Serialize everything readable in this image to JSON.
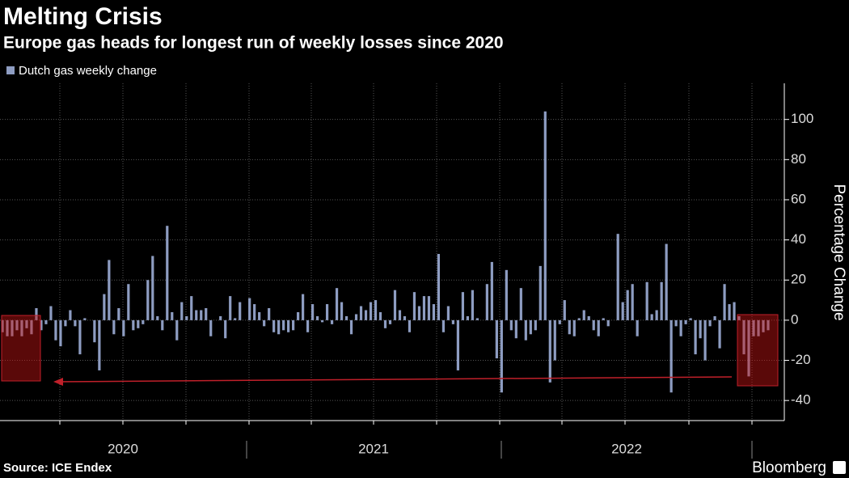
{
  "chart_data": {
    "type": "bar",
    "title": "Melting Crisis",
    "subtitle": "Europe gas heads for longest run of weekly losses since 2020",
    "y_label": "Percentage Change",
    "x_labels": [
      "2020",
      "2021",
      "2022"
    ],
    "source": "Source: ICE Endex",
    "brand": "Bloomberg",
    "categories": [
      null,
      null,
      null,
      null,
      null,
      null,
      null,
      null,
      null,
      null,
      null,
      null,
      null,
      null,
      null,
      null,
      null,
      null,
      null,
      null,
      null,
      null,
      null,
      null,
      null,
      null,
      null,
      null,
      null,
      null,
      null,
      null,
      null,
      null,
      null,
      null,
      null,
      null,
      null,
      null,
      null,
      null,
      null,
      null,
      null,
      null,
      null,
      null,
      null,
      null,
      null,
      null,
      null,
      null,
      null,
      null,
      null,
      null,
      null,
      null,
      null,
      null,
      null,
      null,
      null,
      null,
      null,
      null,
      null,
      null,
      null,
      null,
      null,
      null,
      null,
      null,
      null,
      null,
      null,
      null,
      null,
      null,
      null,
      null,
      null,
      null,
      null,
      null,
      null,
      null,
      null,
      null,
      null,
      null,
      null,
      null,
      null,
      null,
      null,
      null,
      null,
      null,
      null,
      null,
      null,
      null,
      null,
      null,
      null,
      null,
      null,
      null,
      null,
      null,
      null,
      null,
      null,
      null,
      null,
      null,
      null,
      null,
      null,
      null,
      null,
      null,
      null,
      null,
      null,
      null,
      null,
      null,
      null,
      null,
      null,
      null,
      null,
      null,
      null,
      null,
      null,
      null,
      null,
      null,
      null,
      null,
      null,
      null,
      null,
      null,
      null,
      null,
      null,
      null,
      null,
      null,
      null,
      null,
      null
    ],
    "series": [
      {
        "name": "Dutch gas weekly change",
        "color": "#8e9dc2",
        "values": [
          -6,
          -8,
          -8,
          -5,
          -8,
          -4,
          -7,
          6,
          -5,
          -2,
          7,
          -10,
          -13,
          -3,
          5,
          -3,
          -17,
          1,
          0,
          -11,
          -25,
          13,
          30,
          -7,
          6,
          -8,
          18,
          -5,
          -4,
          -2,
          20,
          32,
          2,
          -5,
          47,
          4,
          -10,
          9,
          2,
          12,
          5,
          5,
          6,
          -8,
          0,
          2,
          -9,
          12,
          1,
          9,
          0,
          11,
          8,
          4,
          -3,
          6,
          -6,
          -7,
          -5,
          -6,
          -5,
          4,
          13,
          -6,
          8,
          2,
          -1,
          8,
          -2,
          16,
          9,
          2,
          -7,
          3,
          7,
          5,
          9,
          10,
          4,
          -4,
          -2,
          15,
          5,
          2,
          -6,
          14,
          7,
          12,
          12,
          8,
          33,
          -6,
          7,
          -2,
          -25,
          14,
          2,
          15,
          1,
          0,
          18,
          29,
          -19,
          -36,
          25,
          -5,
          -9,
          16,
          -10,
          -7,
          -5,
          27,
          104,
          -31,
          -20,
          -2,
          10,
          -7,
          -8,
          1,
          5,
          2,
          -5,
          -8,
          1,
          -3,
          0,
          43,
          9,
          15,
          18,
          -8,
          0,
          19,
          3,
          5,
          19,
          38,
          -36,
          -3,
          -8,
          -2,
          1,
          -17,
          -9,
          -20,
          -3,
          2,
          -14,
          18,
          8,
          9,
          2,
          -17,
          -28,
          -8,
          -8,
          -6,
          -5
        ]
      }
    ],
    "ylim": [
      -50,
      118
    ],
    "yticks": [
      -40,
      -20,
      0,
      20,
      40,
      60,
      80,
      100
    ],
    "grid": true
  }
}
